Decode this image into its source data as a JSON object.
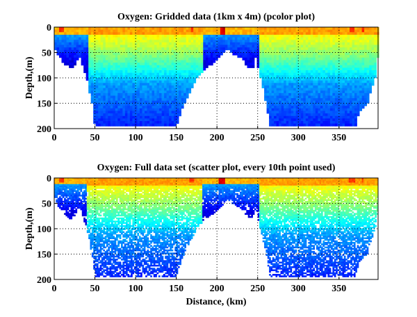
{
  "chart_data": [
    {
      "type": "heatmap",
      "title": "Oxygen: Gridded data (1km x 4m) (pcolor plot)",
      "xlabel": "",
      "ylabel": "Depth,(m)",
      "xlim": [
        0,
        398
      ],
      "ylim": [
        200,
        0
      ],
      "xticks": [
        0,
        50,
        100,
        150,
        200,
        250,
        300,
        350
      ],
      "yticks": [
        0,
        50,
        100,
        150,
        200
      ],
      "grid": true,
      "colormap": "jet",
      "bottom_profile": {
        "distance_km": [
          0,
          5,
          10,
          20,
          25,
          30,
          33,
          40,
          45,
          48,
          50,
          150,
          155,
          165,
          175,
          185,
          195,
          205,
          213,
          220,
          230,
          240,
          245,
          248,
          252,
          258,
          262,
          265,
          370,
          375,
          385,
          390,
          396,
          398
        ],
        "depth_m": [
          35,
          55,
          65,
          80,
          75,
          55,
          65,
          100,
          140,
          160,
          195,
          195,
          170,
          130,
          100,
          80,
          70,
          55,
          40,
          50,
          60,
          80,
          75,
          55,
          90,
          130,
          160,
          195,
          195,
          165,
          150,
          120,
          90,
          50
        ]
      }
    },
    {
      "type": "scatter",
      "title": "Oxygen: Full data set (scatter plot, every 10th point used)",
      "xlabel": "Distance, (km)",
      "ylabel": "Depth,(m)",
      "xlim": [
        0,
        398
      ],
      "ylim": [
        200,
        0
      ],
      "xticks": [
        0,
        50,
        100,
        150,
        200,
        250,
        300,
        350
      ],
      "yticks": [
        0,
        50,
        100,
        150,
        200
      ],
      "grid": true,
      "colormap": "jet"
    }
  ]
}
